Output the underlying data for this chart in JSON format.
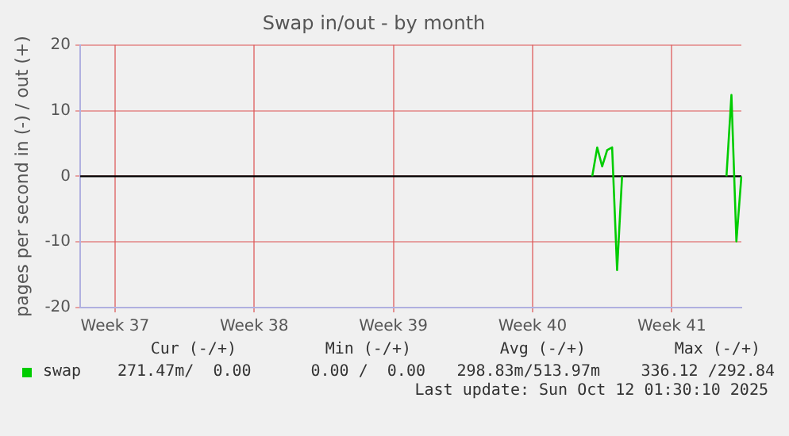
{
  "chart_data": {
    "type": "line",
    "title": "Swap in/out - by month",
    "ylabel": "pages per second in (-) / out (+)",
    "categories": [
      null,
      null,
      null,
      null,
      null,
      null,
      null,
      "Week 37",
      null,
      null,
      null,
      null,
      null,
      null,
      null,
      null,
      null,
      null,
      null,
      null,
      null,
      null,
      null,
      null,
      null,
      null,
      null,
      null,
      null,
      null,
      null,
      null,
      null,
      null,
      null,
      "Week 38",
      null,
      null,
      null,
      null,
      null,
      null,
      null,
      null,
      null,
      null,
      null,
      null,
      null,
      null,
      null,
      null,
      null,
      null,
      null,
      null,
      null,
      null,
      null,
      null,
      null,
      null,
      null,
      "Week 39",
      null,
      null,
      null,
      null,
      null,
      null,
      null,
      null,
      null,
      null,
      null,
      null,
      null,
      null,
      null,
      null,
      null,
      null,
      null,
      null,
      null,
      null,
      null,
      null,
      null,
      null,
      null,
      "Week 40",
      null,
      null,
      null,
      null,
      null,
      null,
      null,
      null,
      null,
      null,
      null,
      null,
      null,
      null,
      null,
      null,
      null,
      null,
      null,
      null,
      null,
      null,
      null,
      null,
      null,
      null,
      null,
      "Week 41",
      null,
      null,
      null,
      null,
      null,
      null,
      null,
      null,
      null,
      null,
      null,
      null,
      null,
      null
    ],
    "series": [
      {
        "name": "swap",
        "color": "#00cc00",
        "values": [
          null,
          null,
          null,
          null,
          null,
          null,
          null,
          null,
          null,
          null,
          null,
          null,
          null,
          null,
          null,
          null,
          null,
          null,
          null,
          null,
          null,
          null,
          null,
          null,
          null,
          null,
          null,
          null,
          null,
          null,
          null,
          null,
          null,
          null,
          null,
          null,
          null,
          null,
          null,
          null,
          null,
          null,
          null,
          null,
          null,
          null,
          null,
          null,
          null,
          null,
          null,
          null,
          null,
          null,
          null,
          null,
          null,
          null,
          null,
          null,
          null,
          null,
          null,
          null,
          null,
          null,
          null,
          null,
          null,
          null,
          null,
          null,
          null,
          null,
          null,
          null,
          null,
          null,
          null,
          null,
          null,
          null,
          null,
          null,
          null,
          null,
          null,
          null,
          null,
          null,
          null,
          null,
          null,
          null,
          null,
          null,
          null,
          null,
          null,
          null,
          null,
          null,
          null,
          0,
          4.4,
          1.5,
          4.0,
          4.4,
          -14.3,
          0,
          null,
          null,
          null,
          null,
          null,
          null,
          null,
          null,
          null,
          null,
          null,
          null,
          null,
          null,
          null,
          null,
          null,
          null,
          null,
          null,
          0,
          12.4,
          -9.9,
          0
        ]
      }
    ],
    "ylim": [
      -20,
      20
    ],
    "yticks": [
      -20,
      -10,
      0,
      10,
      20
    ],
    "grid": true,
    "legend": "bottom",
    "marker": "none",
    "line_style": "solid",
    "ref_lines": [
      {
        "axis": "y",
        "value": 0,
        "color": "#000000"
      }
    ],
    "annotations": [
      "Cur (-/+)",
      "Min (-/+)",
      "Avg (-/+)",
      "Max (-/+)",
      "271.47m/  0.00",
      "0.00 /  0.00",
      "298.83m/513.97m",
      "336.12 /292.84",
      "Last update: Sun Oct 12 01:30:10 2025"
    ]
  }
}
